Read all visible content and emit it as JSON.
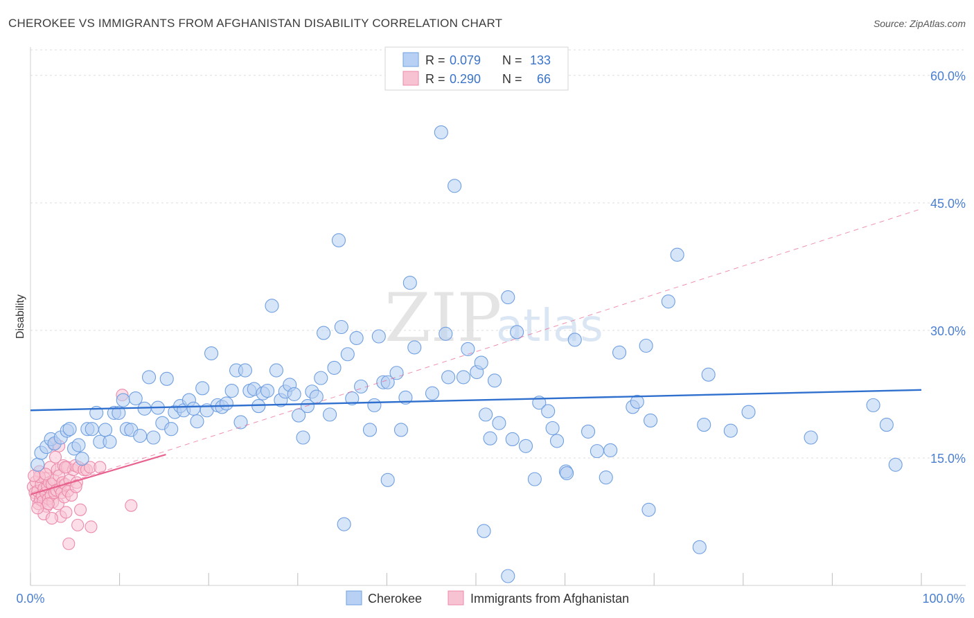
{
  "header": {
    "title": "CHEROKEE VS IMMIGRANTS FROM AFGHANISTAN DISABILITY CORRELATION CHART",
    "source": "Source: ZipAtlas.com"
  },
  "watermark": {
    "part1": "ZIP",
    "part2": "atlas"
  },
  "legend_top": {
    "rows": [
      {
        "r_label": "R =",
        "r_value": "0.079",
        "n_label": "N =",
        "n_value": "133"
      },
      {
        "r_label": "R =",
        "r_value": "0.290",
        "n_label": "N =",
        "n_value": "66"
      }
    ]
  },
  "legend_bottom": {
    "items": [
      "Cherokee",
      "Immigrants from Afghanistan"
    ]
  },
  "colors": {
    "blue_fill": "#b7d0f3",
    "blue_stroke": "#6f9fe0",
    "blue_line": "#2f6fce",
    "pink_fill": "#f7c3d3",
    "pink_stroke": "#ec8aaa",
    "pink_line": "#e8628e"
  },
  "chart_data": {
    "type": "scatter",
    "title": "CHEROKEE VS IMMIGRANTS FROM AFGHANISTAN DISABILITY CORRELATION CHART",
    "xlabel": "",
    "ylabel": "Disability",
    "xlim": [
      0,
      100
    ],
    "ylim": [
      0,
      63
    ],
    "x_tick_labels": [
      "0.0%",
      "100.0%"
    ],
    "y_ticks": [
      15,
      30,
      45,
      60
    ],
    "y_tick_labels": [
      "15.0%",
      "30.0%",
      "45.0%",
      "60.0%"
    ],
    "grid": true,
    "legend_position": "top-center",
    "series": [
      {
        "name": "Cherokee",
        "R": 0.079,
        "N": 133,
        "trend": {
          "x": [
            0,
            100
          ],
          "y": [
            20.6,
            23.0
          ],
          "style": "solid"
        },
        "points": [
          [
            0.8,
            14.2
          ],
          [
            1.2,
            15.6
          ],
          [
            1.8,
            16.3
          ],
          [
            2.3,
            17.2
          ],
          [
            2.7,
            16.7
          ],
          [
            3.4,
            17.4
          ],
          [
            4.1,
            18.2
          ],
          [
            4.4,
            18.4
          ],
          [
            4.9,
            16.1
          ],
          [
            5.4,
            16.5
          ],
          [
            5.8,
            14.9
          ],
          [
            6.4,
            18.4
          ],
          [
            6.9,
            18.4
          ],
          [
            7.4,
            20.3
          ],
          [
            7.8,
            16.9
          ],
          [
            8.4,
            18.3
          ],
          [
            8.9,
            16.9
          ],
          [
            9.4,
            20.3
          ],
          [
            9.9,
            20.3
          ],
          [
            10.4,
            21.8
          ],
          [
            10.8,
            18.4
          ],
          [
            11.3,
            18.3
          ],
          [
            11.8,
            22.0
          ],
          [
            12.3,
            17.6
          ],
          [
            12.8,
            20.8
          ],
          [
            13.3,
            24.5
          ],
          [
            13.8,
            17.4
          ],
          [
            14.3,
            20.9
          ],
          [
            14.8,
            19.1
          ],
          [
            15.3,
            24.3
          ],
          [
            15.8,
            18.4
          ],
          [
            16.2,
            20.4
          ],
          [
            16.8,
            21.1
          ],
          [
            17.2,
            20.6
          ],
          [
            17.8,
            21.8
          ],
          [
            18.3,
            20.8
          ],
          [
            18.7,
            19.3
          ],
          [
            19.3,
            23.2
          ],
          [
            19.8,
            20.6
          ],
          [
            20.3,
            27.3
          ],
          [
            21.0,
            21.2
          ],
          [
            21.5,
            21.0
          ],
          [
            22.0,
            21.4
          ],
          [
            22.6,
            22.9
          ],
          [
            23.1,
            25.3
          ],
          [
            23.6,
            19.2
          ],
          [
            24.1,
            25.3
          ],
          [
            24.6,
            22.9
          ],
          [
            25.1,
            23.1
          ],
          [
            25.6,
            21.1
          ],
          [
            26.1,
            22.6
          ],
          [
            26.6,
            22.9
          ],
          [
            27.1,
            32.9
          ],
          [
            27.6,
            25.3
          ],
          [
            28.1,
            21.8
          ],
          [
            28.6,
            22.8
          ],
          [
            29.1,
            23.6
          ],
          [
            29.6,
            22.5
          ],
          [
            30.1,
            20.0
          ],
          [
            30.6,
            17.4
          ],
          [
            31.1,
            21.1
          ],
          [
            31.6,
            22.8
          ],
          [
            32.1,
            22.2
          ],
          [
            32.6,
            24.4
          ],
          [
            32.9,
            29.7
          ],
          [
            33.6,
            20.1
          ],
          [
            34.1,
            25.6
          ],
          [
            34.6,
            40.6
          ],
          [
            34.9,
            30.4
          ],
          [
            35.6,
            27.2
          ],
          [
            36.1,
            22.0
          ],
          [
            36.6,
            29.1
          ],
          [
            37.1,
            23.4
          ],
          [
            38.1,
            18.3
          ],
          [
            38.6,
            21.2
          ],
          [
            39.1,
            29.3
          ],
          [
            39.6,
            23.9
          ],
          [
            40.1,
            23.9
          ],
          [
            41.1,
            25.0
          ],
          [
            41.6,
            18.3
          ],
          [
            42.1,
            22.1
          ],
          [
            42.6,
            35.6
          ],
          [
            43.1,
            28.0
          ],
          [
            45.1,
            22.6
          ],
          [
            46.1,
            53.3
          ],
          [
            46.6,
            29.6
          ],
          [
            46.9,
            24.5
          ],
          [
            47.6,
            47.0
          ],
          [
            48.6,
            24.5
          ],
          [
            49.1,
            27.8
          ],
          [
            50.1,
            25.1
          ],
          [
            50.6,
            26.2
          ],
          [
            51.1,
            20.1
          ],
          [
            51.6,
            17.3
          ],
          [
            52.1,
            24.1
          ],
          [
            52.6,
            19.1
          ],
          [
            53.6,
            33.9
          ],
          [
            54.1,
            17.2
          ],
          [
            54.6,
            29.8
          ],
          [
            55.6,
            16.4
          ],
          [
            56.6,
            12.5
          ],
          [
            57.1,
            21.5
          ],
          [
            58.1,
            20.5
          ],
          [
            58.6,
            18.5
          ],
          [
            59.1,
            17.0
          ],
          [
            60.1,
            13.4
          ],
          [
            61.1,
            28.9
          ],
          [
            62.6,
            18.1
          ],
          [
            63.6,
            15.8
          ],
          [
            64.6,
            12.7
          ],
          [
            65.1,
            15.9
          ],
          [
            66.1,
            27.4
          ],
          [
            67.6,
            21.0
          ],
          [
            68.1,
            21.6
          ],
          [
            69.1,
            28.2
          ],
          [
            69.6,
            19.4
          ],
          [
            71.6,
            33.4
          ],
          [
            72.6,
            38.9
          ],
          [
            75.6,
            18.9
          ],
          [
            76.1,
            24.8
          ],
          [
            78.6,
            18.2
          ],
          [
            80.6,
            20.4
          ],
          [
            87.6,
            17.4
          ],
          [
            94.6,
            21.2
          ],
          [
            96.1,
            18.9
          ],
          [
            97.1,
            14.2
          ],
          [
            35.2,
            7.2
          ],
          [
            50.9,
            6.4
          ],
          [
            69.4,
            8.9
          ],
          [
            75.1,
            4.5
          ],
          [
            53.6,
            1.1
          ],
          [
            40.1,
            12.4
          ],
          [
            60.2,
            13.2
          ]
        ]
      },
      {
        "name": "Immigrants from Afghanistan",
        "R": 0.29,
        "N": 66,
        "trend_solid": {
          "x": [
            0,
            15.2
          ],
          "y": [
            10.7,
            15.4
          ]
        },
        "trend_dashed": {
          "x": [
            0,
            100
          ],
          "y": [
            10.7,
            44.3
          ]
        },
        "points": [
          [
            0.3,
            11.6
          ],
          [
            0.5,
            10.9
          ],
          [
            0.6,
            12.2
          ],
          [
            0.7,
            10.4
          ],
          [
            0.8,
            11.1
          ],
          [
            0.9,
            9.6
          ],
          [
            1.0,
            13.4
          ],
          [
            1.1,
            10.1
          ],
          [
            1.2,
            11.9
          ],
          [
            1.3,
            10.6
          ],
          [
            1.4,
            9.9
          ],
          [
            1.5,
            11.4
          ],
          [
            1.6,
            12.6
          ],
          [
            1.7,
            10.9
          ],
          [
            1.8,
            9.3
          ],
          [
            1.9,
            11.6
          ],
          [
            2.0,
            10.2
          ],
          [
            2.1,
            12.1
          ],
          [
            2.2,
            13.9
          ],
          [
            2.3,
            10.6
          ],
          [
            2.4,
            11.9
          ],
          [
            2.5,
            9.8
          ],
          [
            2.6,
            12.4
          ],
          [
            2.7,
            10.9
          ],
          [
            2.8,
            15.1
          ],
          [
            2.9,
            11.2
          ],
          [
            3.0,
            13.6
          ],
          [
            3.1,
            9.6
          ],
          [
            3.2,
            12.9
          ],
          [
            3.3,
            11.4
          ],
          [
            3.4,
            8.1
          ],
          [
            3.5,
            10.9
          ],
          [
            3.6,
            12.1
          ],
          [
            3.7,
            14.1
          ],
          [
            3.8,
            10.4
          ],
          [
            3.9,
            11.9
          ],
          [
            4.0,
            8.6
          ],
          [
            4.1,
            13.9
          ],
          [
            4.2,
            11.1
          ],
          [
            4.3,
            4.9
          ],
          [
            4.4,
            12.4
          ],
          [
            4.6,
            10.6
          ],
          [
            4.8,
            13.6
          ],
          [
            5.0,
            14.1
          ],
          [
            5.2,
            12.1
          ],
          [
            5.4,
            13.9
          ],
          [
            5.6,
            8.9
          ],
          [
            6.0,
            13.6
          ],
          [
            6.3,
            13.6
          ],
          [
            6.7,
            13.9
          ],
          [
            2.6,
            16.6
          ],
          [
            3.2,
            16.4
          ],
          [
            5.3,
            7.1
          ],
          [
            6.8,
            6.9
          ],
          [
            7.8,
            13.9
          ],
          [
            10.3,
            22.4
          ],
          [
            11.3,
            9.4
          ],
          [
            1.0,
            12.8
          ],
          [
            1.5,
            8.4
          ],
          [
            2.0,
            9.6
          ],
          [
            0.4,
            12.9
          ],
          [
            0.8,
            9.1
          ],
          [
            1.7,
            13.1
          ],
          [
            2.4,
            7.9
          ],
          [
            3.9,
            13.9
          ],
          [
            5.1,
            11.6
          ]
        ]
      }
    ]
  }
}
